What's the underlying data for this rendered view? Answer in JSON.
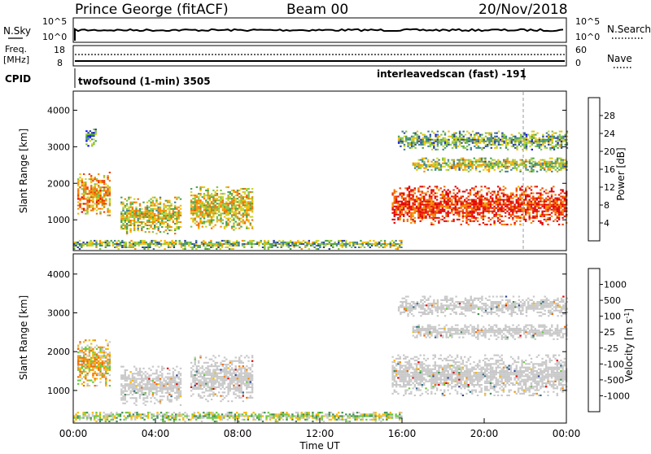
{
  "header": {
    "station": "Prince George (fitACF)",
    "beam": "Beam 00",
    "date": "20/Nov/2018"
  },
  "strip_panels": {
    "nsky_label": "N.Sky",
    "nsky_ticks": [
      "10^5",
      "10^0"
    ],
    "nsearch_label": "N.Search",
    "nsearch_ticks": [
      "10^5",
      "10^0"
    ],
    "freq_label": "Freq.",
    "freq_unit": "[MHz]",
    "freq_ticks": [
      "18",
      "8"
    ],
    "nave_label": "Nave",
    "nave_ticks": [
      "60",
      "0"
    ],
    "cpid_label": "CPID",
    "cpid_modes": [
      "twofsound (1-min) 3505",
      "interleavedscan (fast) -191"
    ]
  },
  "chart_data": [
    {
      "type": "heatmap",
      "panel": "power",
      "ylabel": "Slant Range [km]",
      "xlabel": "Time UT",
      "x_ticks": [
        "00:00",
        "04:00",
        "08:00",
        "12:00",
        "16:00",
        "20:00",
        "00:00"
      ],
      "xlim_hours": [
        0,
        24
      ],
      "ylim": [
        180,
        4500
      ],
      "y_ticks": [
        1000,
        2000,
        3000,
        4000
      ],
      "colorbar": {
        "label": "Power [dB]",
        "ticks": [
          "4",
          "8",
          "12",
          "16",
          "20",
          "24",
          "28"
        ],
        "colors": [
          "#0000ff",
          "#2a3f96",
          "#3f7f8a",
          "#47a047",
          "#7fc242",
          "#c8d42a",
          "#f5b800",
          "#f58a00",
          "#f26a00",
          "#ec3a00",
          "#e30000"
        ]
      },
      "regions": [
        {
          "t0": 0.2,
          "t1": 1.8,
          "r0": 1100,
          "r1": 2300,
          "level": 0.65
        },
        {
          "t0": 0.6,
          "t1": 1.1,
          "r0": 3000,
          "r1": 3500,
          "level": 0.25
        },
        {
          "t0": 2.3,
          "t1": 5.2,
          "r0": 600,
          "r1": 1600,
          "level": 0.5
        },
        {
          "t0": 5.7,
          "t1": 8.7,
          "r0": 700,
          "r1": 1900,
          "level": 0.55
        },
        {
          "t0": 15.5,
          "t1": 24,
          "r0": 850,
          "r1": 1900,
          "level": 0.9
        },
        {
          "t0": 16.5,
          "t1": 24,
          "r0": 2300,
          "r1": 2700,
          "level": 0.45
        },
        {
          "t0": 15.8,
          "t1": 24,
          "r0": 2900,
          "r1": 3400,
          "level": 0.35
        },
        {
          "t0": 0,
          "t1": 16,
          "r0": 180,
          "r1": 450,
          "level": 0.4
        }
      ]
    },
    {
      "type": "heatmap",
      "panel": "velocity",
      "ylabel": "Slant Range [km]",
      "xlabel": "Time UT",
      "x_ticks": [
        "00:00",
        "04:00",
        "08:00",
        "12:00",
        "16:00",
        "20:00",
        "00:00"
      ],
      "xlim_hours": [
        0,
        24
      ],
      "ylim": [
        180,
        4500
      ],
      "y_ticks": [
        1000,
        2000,
        3000,
        4000
      ],
      "colorbar": {
        "label": "Velocity [m s^-1]",
        "ticks": [
          "1000",
          "500",
          "100",
          "25",
          "-25",
          "-100",
          "-500",
          "-1000"
        ],
        "colors": [
          "#2a3f96",
          "#2f6a8a",
          "#3f8f50",
          "#69c641",
          "#c8c8c8",
          "#f5b800",
          "#f58a00",
          "#f26a00",
          "#e30000"
        ]
      },
      "regions": [
        {
          "t0": 0.2,
          "t1": 1.8,
          "r0": 1100,
          "r1": 2300,
          "level": "mixed"
        },
        {
          "t0": 2.3,
          "t1": 5.2,
          "r0": 600,
          "r1": 1600,
          "level": "grey"
        },
        {
          "t0": 5.7,
          "t1": 8.7,
          "r0": 700,
          "r1": 1900,
          "level": "grey"
        },
        {
          "t0": 15.5,
          "t1": 24,
          "r0": 850,
          "r1": 1900,
          "level": "grey"
        },
        {
          "t0": 16.5,
          "t1": 24,
          "r0": 2300,
          "r1": 2700,
          "level": "grey"
        },
        {
          "t0": 15.8,
          "t1": 24,
          "r0": 2900,
          "r1": 3400,
          "level": "grey"
        },
        {
          "t0": 0,
          "t1": 16,
          "r0": 180,
          "r1": 450,
          "level": "green"
        }
      ]
    }
  ]
}
